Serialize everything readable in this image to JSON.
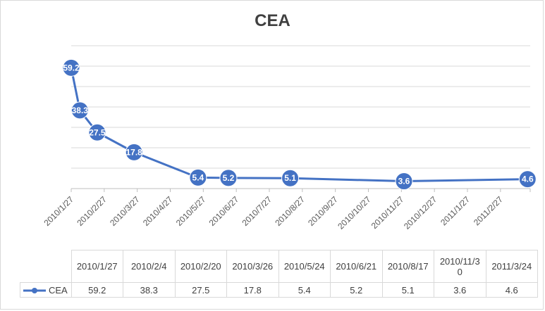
{
  "chart_data": {
    "type": "line",
    "title": "CEA",
    "x_axis_ticks": [
      "2010/1/27",
      "2010/2/27",
      "2010/3/27",
      "2010/4/27",
      "2010/5/27",
      "2010/6/27",
      "2010/7/27",
      "2010/8/27",
      "2010/9/27",
      "2010/10/27",
      "2010/11/27",
      "2010/12/27",
      "2011/1/27",
      "2011/2/27"
    ],
    "x": [
      "2010/1/27",
      "2010/2/4",
      "2010/2/20",
      "2010/3/26",
      "2010/5/24",
      "2010/6/21",
      "2010/8/17",
      "2010/11/30",
      "2011/3/24"
    ],
    "series": [
      {
        "name": "CEA",
        "values": [
          59.2,
          38.3,
          27.5,
          17.8,
          5.4,
          5.2,
          5.1,
          3.6,
          4.6
        ],
        "color": "#4472c4"
      }
    ],
    "ylim": [
      0,
      70
    ],
    "grid": true,
    "legend": "data-table",
    "data_table": {
      "headers": [
        "2010/1/27",
        "2010/2/4",
        "2010/2/20",
        "2010/3/26",
        "2010/5/24",
        "2010/6/21",
        "2010/8/17",
        "2010/11/3\n0",
        "2011/3/24"
      ],
      "values": [
        "59.2",
        "38.3",
        "27.5",
        "17.8",
        "5.4",
        "5.2",
        "5.1",
        "3.6",
        "4.6"
      ]
    }
  }
}
